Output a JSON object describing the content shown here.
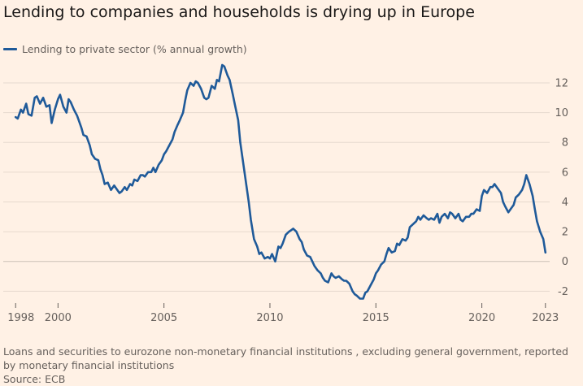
{
  "header": {
    "title": "Lending to companies and households is drying up in Europe"
  },
  "legend": {
    "label": "Lending to private sector (% annual growth)"
  },
  "footer": {
    "note": "Loans and securities to eurozone non-monetary financial institutions , excluding general government, reported by monetary financial institutions",
    "source": "Source: ECB"
  },
  "colors": {
    "background": "#fff1e5",
    "line": "#1f5a99",
    "grid": "#e6d9ce",
    "zero_line": "#ccc1b7"
  },
  "chart_data": {
    "type": "line",
    "xlim": [
      1997.8,
      2023.2
    ],
    "ylim": [
      -2.8,
      13.2
    ],
    "x_ticks": [
      {
        "value": 1998,
        "label": "1998"
      },
      {
        "value": 2000,
        "label": "2000"
      },
      {
        "value": 2005,
        "label": "2005"
      },
      {
        "value": 2010,
        "label": "2010"
      },
      {
        "value": 2015,
        "label": "2015"
      },
      {
        "value": 2020,
        "label": "2020"
      },
      {
        "value": 2023,
        "label": "2023"
      }
    ],
    "y_ticks": [
      {
        "value": -2,
        "label": "-2"
      },
      {
        "value": 0,
        "label": "0"
      },
      {
        "value": 2,
        "label": "2"
      },
      {
        "value": 4,
        "label": "4"
      },
      {
        "value": 6,
        "label": "6"
      },
      {
        "value": 8,
        "label": "8"
      },
      {
        "value": 10,
        "label": "10"
      },
      {
        "value": 12,
        "label": "12"
      }
    ],
    "grid": true,
    "series": [
      {
        "name": "Lending to private sector (% annual growth)",
        "x": [
          1998.0,
          1998.1,
          1998.25,
          1998.35,
          1998.5,
          1998.6,
          1998.75,
          1998.9,
          1999.0,
          1999.15,
          1999.3,
          1999.45,
          1999.6,
          1999.7,
          1999.85,
          2000.0,
          2000.1,
          2000.25,
          2000.4,
          2000.5,
          2000.6,
          2000.75,
          2000.9,
          2001.0,
          2001.1,
          2001.2,
          2001.35,
          2001.5,
          2001.6,
          2001.75,
          2001.9,
          2002.0,
          2002.1,
          2002.2,
          2002.35,
          2002.5,
          2002.65,
          2002.75,
          2002.9,
          2003.0,
          2003.15,
          2003.25,
          2003.4,
          2003.5,
          2003.6,
          2003.75,
          2003.9,
          2004.0,
          2004.1,
          2004.25,
          2004.4,
          2004.5,
          2004.6,
          2004.75,
          2004.9,
          2005.0,
          2005.1,
          2005.25,
          2005.4,
          2005.5,
          2005.65,
          2005.75,
          2005.9,
          2006.0,
          2006.1,
          2006.25,
          2006.4,
          2006.5,
          2006.6,
          2006.75,
          2006.9,
          2007.0,
          2007.1,
          2007.25,
          2007.4,
          2007.5,
          2007.6,
          2007.75,
          2007.85,
          2008.0,
          2008.1,
          2008.25,
          2008.35,
          2008.5,
          2008.6,
          2008.75,
          2008.9,
          2009.0,
          2009.1,
          2009.25,
          2009.4,
          2009.5,
          2009.6,
          2009.75,
          2009.9,
          2010.0,
          2010.1,
          2010.25,
          2010.4,
          2010.5,
          2010.6,
          2010.75,
          2010.9,
          2011.0,
          2011.1,
          2011.25,
          2011.4,
          2011.5,
          2011.6,
          2011.75,
          2011.9,
          2012.0,
          2012.1,
          2012.25,
          2012.4,
          2012.5,
          2012.6,
          2012.75,
          2012.9,
          2013.0,
          2013.1,
          2013.25,
          2013.4,
          2013.5,
          2013.6,
          2013.75,
          2013.9,
          2014.0,
          2014.1,
          2014.25,
          2014.4,
          2014.5,
          2014.6,
          2014.75,
          2014.9,
          2015.0,
          2015.1,
          2015.25,
          2015.4,
          2015.5,
          2015.6,
          2015.75,
          2015.9,
          2016.0,
          2016.1,
          2016.25,
          2016.4,
          2016.5,
          2016.6,
          2016.75,
          2016.9,
          2017.0,
          2017.1,
          2017.25,
          2017.4,
          2017.5,
          2017.6,
          2017.75,
          2017.9,
          2018.0,
          2018.1,
          2018.25,
          2018.4,
          2018.5,
          2018.6,
          2018.75,
          2018.9,
          2019.0,
          2019.1,
          2019.25,
          2019.4,
          2019.5,
          2019.6,
          2019.75,
          2019.9,
          2020.0,
          2020.1,
          2020.25,
          2020.4,
          2020.5,
          2020.6,
          2020.75,
          2020.9,
          2021.0,
          2021.1,
          2021.25,
          2021.4,
          2021.5,
          2021.6,
          2021.75,
          2021.9,
          2022.0,
          2022.1,
          2022.25,
          2022.4,
          2022.5,
          2022.6,
          2022.75,
          2022.9,
          2023.0
        ],
        "y": [
          9.7,
          9.6,
          10.2,
          10.0,
          10.6,
          9.9,
          9.8,
          11.0,
          11.1,
          10.6,
          11.0,
          10.4,
          10.5,
          9.3,
          10.2,
          10.9,
          11.2,
          10.4,
          10.0,
          10.9,
          10.7,
          10.2,
          9.8,
          9.4,
          9.0,
          8.5,
          8.4,
          7.8,
          7.2,
          6.9,
          6.8,
          6.2,
          5.8,
          5.2,
          5.3,
          4.8,
          5.1,
          4.9,
          4.6,
          4.7,
          5.0,
          4.8,
          5.2,
          5.1,
          5.5,
          5.4,
          5.8,
          5.8,
          5.7,
          6.0,
          6.0,
          6.3,
          6.0,
          6.5,
          6.8,
          7.2,
          7.4,
          7.8,
          8.2,
          8.7,
          9.2,
          9.5,
          10.0,
          10.8,
          11.5,
          12.0,
          11.8,
          12.1,
          12.0,
          11.6,
          11.0,
          10.9,
          11.0,
          11.8,
          11.6,
          12.2,
          12.1,
          13.2,
          13.1,
          12.5,
          12.2,
          11.2,
          10.5,
          9.5,
          8.0,
          6.5,
          5.0,
          4.0,
          2.8,
          1.5,
          1.0,
          0.5,
          0.6,
          0.2,
          0.3,
          0.2,
          0.5,
          0.0,
          1.0,
          0.9,
          1.2,
          1.8,
          2.0,
          2.1,
          2.2,
          2.0,
          1.5,
          1.3,
          0.8,
          0.4,
          0.3,
          0.0,
          -0.3,
          -0.6,
          -0.8,
          -1.1,
          -1.3,
          -1.4,
          -0.8,
          -1.0,
          -1.1,
          -1.0,
          -1.2,
          -1.3,
          -1.3,
          -1.5,
          -2.0,
          -2.2,
          -2.3,
          -2.5,
          -2.5,
          -2.1,
          -2.0,
          -1.6,
          -1.2,
          -0.8,
          -0.6,
          -0.2,
          0.0,
          0.5,
          0.9,
          0.6,
          0.7,
          1.2,
          1.1,
          1.5,
          1.4,
          1.6,
          2.3,
          2.5,
          2.7,
          3.0,
          2.8,
          3.1,
          2.9,
          2.8,
          2.9,
          2.8,
          3.2,
          2.6,
          3.0,
          3.2,
          2.9,
          3.3,
          3.2,
          2.9,
          3.2,
          2.8,
          2.7,
          3.0,
          3.0,
          3.2,
          3.2,
          3.5,
          3.4,
          4.4,
          4.8,
          4.6,
          5.0,
          5.0,
          5.2,
          4.9,
          4.6,
          4.0,
          3.7,
          3.3,
          3.6,
          3.8,
          4.3,
          4.5,
          4.8,
          5.2,
          5.8,
          5.2,
          4.4,
          3.5,
          2.7,
          2.0,
          1.5,
          0.6
        ]
      }
    ]
  }
}
